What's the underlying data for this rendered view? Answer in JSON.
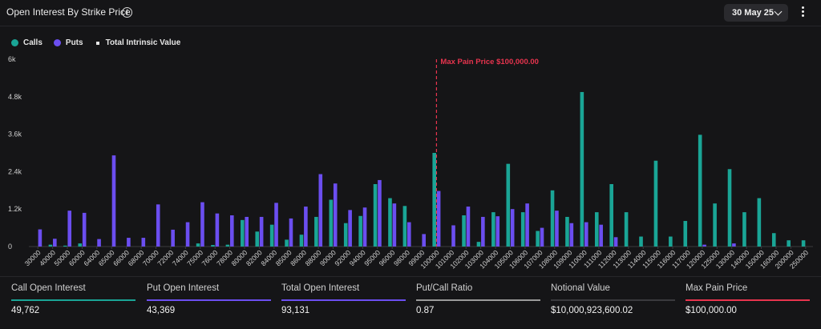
{
  "header": {
    "title": "Open Interest By Strike Price",
    "date_selected": "30 May 25"
  },
  "legend": {
    "calls": "Calls",
    "puts": "Puts",
    "intrinsic": "Total Intrinsic Value"
  },
  "colors": {
    "calls": "#1aa596",
    "puts": "#6b4ef0",
    "max_pain": "#e8344e",
    "ratio": "#9a9a9a",
    "notional": "#3a3a3e"
  },
  "chart_data": {
    "type": "bar",
    "ylim": [
      0,
      6000
    ],
    "yticks": [
      0,
      1200,
      2400,
      3600,
      4800,
      6000
    ],
    "ytick_labels": [
      "0",
      "1.2k",
      "2.4k",
      "3.6k",
      "4.8k",
      "6k"
    ],
    "annotation": "Max Pain Price $100,000.00",
    "max_pain_category": "100000",
    "categories": [
      "30000",
      "40000",
      "50000",
      "60000",
      "64000",
      "65000",
      "66000",
      "68000",
      "70000",
      "72000",
      "74000",
      "75000",
      "76000",
      "78000",
      "80000",
      "82000",
      "84000",
      "85000",
      "86000",
      "88000",
      "90000",
      "92000",
      "94000",
      "95000",
      "96000",
      "98000",
      "99000",
      "100000",
      "101000",
      "102000",
      "103000",
      "104000",
      "105000",
      "106000",
      "107000",
      "108000",
      "109000",
      "110000",
      "111000",
      "112000",
      "113000",
      "114000",
      "115000",
      "116000",
      "117000",
      "120000",
      "125000",
      "130000",
      "140000",
      "150000",
      "160000",
      "200000",
      "250000"
    ],
    "series": [
      {
        "name": "Calls",
        "values": [
          0,
          60,
          30,
          100,
          0,
          0,
          0,
          0,
          0,
          0,
          0,
          100,
          50,
          60,
          850,
          480,
          700,
          220,
          380,
          950,
          1500,
          750,
          980,
          2000,
          1550,
          1300,
          0,
          3000,
          0,
          1000,
          150,
          1100,
          2650,
          1100,
          500,
          1800,
          950,
          4950,
          1100,
          2000,
          1100,
          320,
          2750,
          320,
          820,
          3580,
          1380,
          2480,
          1100,
          1550,
          430,
          200,
          200
        ]
      },
      {
        "name": "Puts",
        "values": [
          550,
          250,
          1150,
          1080,
          240,
          2920,
          280,
          280,
          1350,
          540,
          780,
          1420,
          1060,
          1000,
          950,
          950,
          1400,
          900,
          1280,
          2320,
          2020,
          1170,
          1250,
          2130,
          1380,
          780,
          400,
          1780,
          680,
          1280,
          950,
          970,
          1200,
          1380,
          600,
          1150,
          750,
          780,
          700,
          300,
          0,
          0,
          0,
          0,
          0,
          60,
          0,
          100,
          0,
          0,
          0,
          0,
          0
        ]
      }
    ]
  },
  "stats": [
    {
      "label": "Call Open Interest",
      "value": "49,762"
    },
    {
      "label": "Put Open Interest",
      "value": "43,369"
    },
    {
      "label": "Total Open Interest",
      "value": "93,131"
    },
    {
      "label": "Put/Call Ratio",
      "value": "0.87"
    },
    {
      "label": "Notional Value",
      "value": "$10,000,923,600.02"
    },
    {
      "label": "Max Pain Price",
      "value": "$100,000.00"
    }
  ]
}
